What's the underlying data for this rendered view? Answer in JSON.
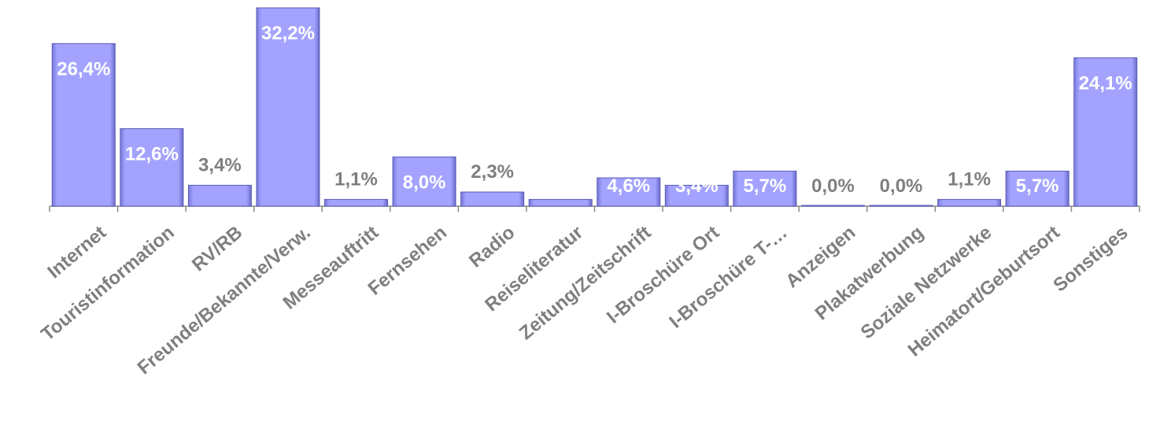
{
  "chart_data": {
    "type": "bar",
    "categories": [
      "Internet",
      "Touristinformation",
      "RV/RB",
      "Freunde/Bekannte/Verw.",
      "Messeauftritt",
      "Fernsehen",
      "Radio",
      "Reiseliteratur",
      "Zeitung/Zeitschrift",
      "I-Broschüre Ort",
      "I-Broschüre T-…",
      "Anzeigen",
      "Plakatwerbung",
      "Soziale Netzwerke",
      "Heimatort/Geburtsort",
      "Sonstiges"
    ],
    "values": [
      26.4,
      12.6,
      3.4,
      32.2,
      1.1,
      8.0,
      2.3,
      1.1,
      4.6,
      3.4,
      5.7,
      0.0,
      0.0,
      1.1,
      5.7,
      24.1
    ],
    "value_labels": [
      "26,4%",
      "12,6%",
      "3,4%",
      "32,2%",
      "1,1%",
      "8,0%",
      "2,3%",
      null,
      "4,6%",
      "3,4%",
      "5,7%",
      "0,0%",
      "0,0%",
      "1,1%",
      "5,7%",
      "24,1%"
    ],
    "color": "#a3a3ff"
  }
}
